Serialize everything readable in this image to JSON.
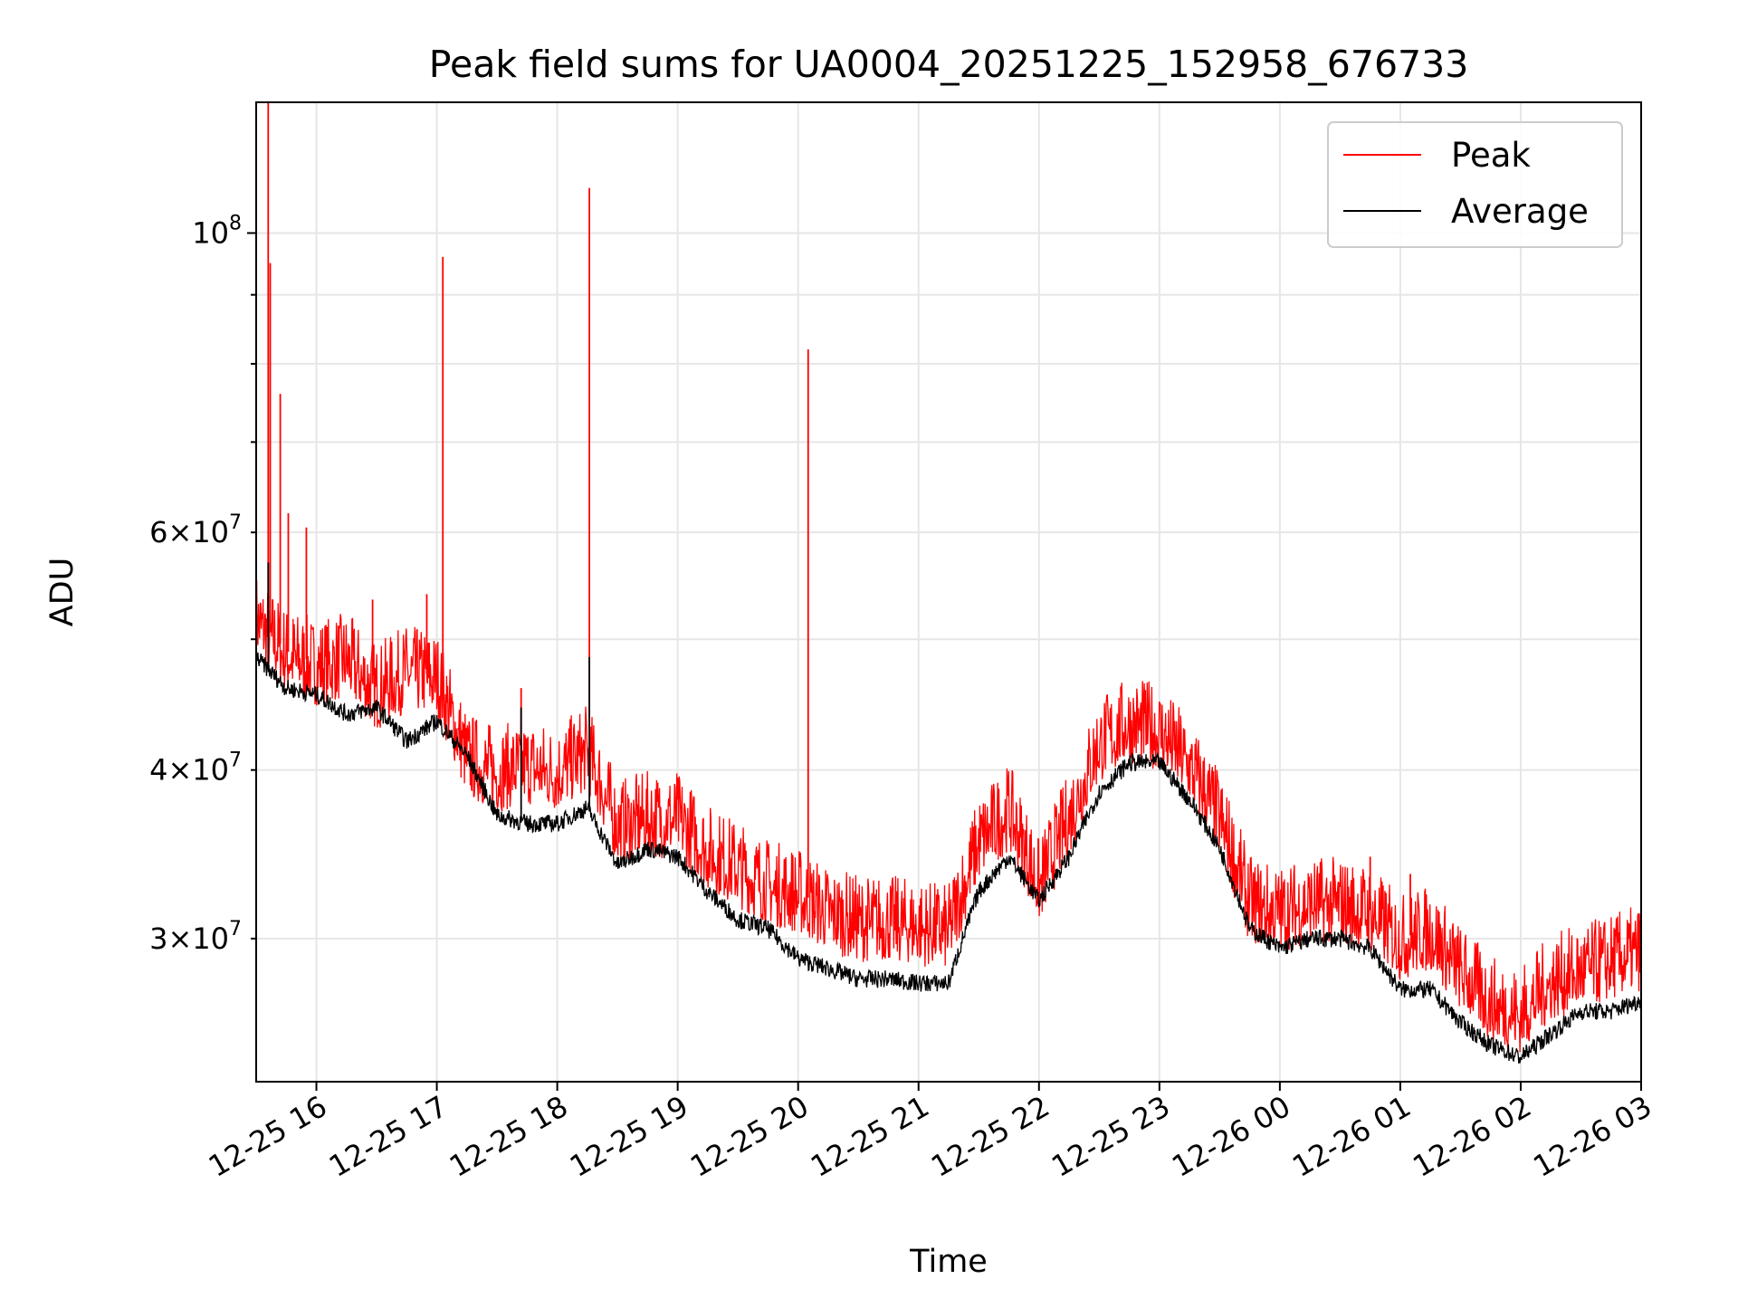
{
  "chart_data": {
    "type": "line",
    "title": "Peak field sums for UA0004_20251225_152958_676733",
    "xlabel": "Time",
    "ylabel": "ADU",
    "y_scale": "log",
    "ylim": [
      23500000,
      125000000
    ],
    "xlim": [
      "2025-12-25 15:30",
      "2025-12-26 03:00"
    ],
    "grid": true,
    "legend_position": "top-right",
    "x_tick_labels": [
      "12-25 16",
      "12-25 17",
      "12-25 18",
      "12-25 19",
      "12-25 20",
      "12-25 21",
      "12-25 22",
      "12-25 23",
      "12-26 00",
      "12-26 01",
      "12-26 02",
      "12-26 03"
    ],
    "x_ticks": [
      "2025-12-25 16:00",
      "2025-12-25 17:00",
      "2025-12-25 18:00",
      "2025-12-25 19:00",
      "2025-12-25 20:00",
      "2025-12-25 21:00",
      "2025-12-25 22:00",
      "2025-12-25 23:00",
      "2025-12-26 00:00",
      "2025-12-26 01:00",
      "2025-12-26 02:00",
      "2025-12-26 03:00"
    ],
    "y_major_ticks": [
      {
        "value": 100000000,
        "base": "10",
        "exp": "8"
      }
    ],
    "y_minor_ticks": [
      {
        "value": 30000000,
        "mant": "3",
        "base": "10",
        "exp": "7"
      },
      {
        "value": 40000000,
        "mant": "4",
        "base": "10",
        "exp": "7"
      },
      {
        "value": 60000000,
        "mant": "6",
        "base": "10",
        "exp": "7"
      }
    ],
    "y_minor_unlabeled": [
      50000000,
      70000000,
      80000000,
      90000000
    ],
    "series": [
      {
        "name": "Peak",
        "color": "#ff0000",
        "x": [
          "2025-12-25 15:30",
          "2025-12-25 15:45",
          "2025-12-25 16:00",
          "2025-12-25 16:15",
          "2025-12-25 16:30",
          "2025-12-25 16:45",
          "2025-12-25 17:00",
          "2025-12-25 17:15",
          "2025-12-25 17:30",
          "2025-12-25 17:45",
          "2025-12-25 18:00",
          "2025-12-25 18:15",
          "2025-12-25 18:30",
          "2025-12-25 18:45",
          "2025-12-25 19:00",
          "2025-12-25 19:15",
          "2025-12-25 19:30",
          "2025-12-25 19:45",
          "2025-12-25 20:00",
          "2025-12-25 20:15",
          "2025-12-25 20:30",
          "2025-12-25 20:45",
          "2025-12-25 21:00",
          "2025-12-25 21:15",
          "2025-12-25 21:30",
          "2025-12-25 21:45",
          "2025-12-25 22:00",
          "2025-12-25 22:15",
          "2025-12-25 22:30",
          "2025-12-25 22:45",
          "2025-12-25 23:00",
          "2025-12-25 23:15",
          "2025-12-25 23:30",
          "2025-12-25 23:45",
          "2025-12-26 00:00",
          "2025-12-26 00:15",
          "2025-12-26 00:30",
          "2025-12-26 00:45",
          "2025-12-26 01:00",
          "2025-12-26 01:15",
          "2025-12-26 01:30",
          "2025-12-26 01:45",
          "2025-12-26 02:00",
          "2025-12-26 02:15",
          "2025-12-26 02:30",
          "2025-12-26 02:45",
          "2025-12-26 03:00"
        ],
        "y": [
          52000000,
          49000000,
          48000000,
          48500000,
          46000000,
          47500000,
          47000000,
          41000000,
          40000000,
          40500000,
          40000000,
          41500000,
          36500000,
          37000000,
          37000000,
          35000000,
          34000000,
          33000000,
          32500000,
          31500000,
          31000000,
          31000000,
          30800000,
          30500000,
          35500000,
          37500000,
          33000000,
          37000000,
          42000000,
          43500000,
          43000000,
          40500000,
          37000000,
          32000000,
          31500000,
          32000000,
          32000000,
          31500000,
          30000000,
          30500000,
          28500000,
          27000000,
          26500000,
          28000000,
          28500000,
          29000000,
          29500000
        ],
        "spikes": [
          {
            "x": "2025-12-25 15:36",
            "y": 125000000
          },
          {
            "x": "2025-12-25 15:37",
            "y": 95000000
          },
          {
            "x": "2025-12-25 15:42",
            "y": 76000000
          },
          {
            "x": "2025-12-25 15:46",
            "y": 62000000
          },
          {
            "x": "2025-12-25 15:55",
            "y": 60500000
          },
          {
            "x": "2025-12-25 16:28",
            "y": 53500000
          },
          {
            "x": "2025-12-25 16:55",
            "y": 54000000
          },
          {
            "x": "2025-12-25 17:03",
            "y": 96000000
          },
          {
            "x": "2025-12-25 17:42",
            "y": 46000000
          },
          {
            "x": "2025-12-25 18:16",
            "y": 108000000
          },
          {
            "x": "2025-12-25 20:05",
            "y": 82000000
          },
          {
            "x": "2025-12-26 00:45",
            "y": 34500000
          },
          {
            "x": "2025-12-26 01:05",
            "y": 33500000
          }
        ]
      },
      {
        "name": "Average",
        "color": "#000000",
        "x": [
          "2025-12-25 15:30",
          "2025-12-25 15:45",
          "2025-12-25 16:00",
          "2025-12-25 16:15",
          "2025-12-25 16:30",
          "2025-12-25 16:45",
          "2025-12-25 17:00",
          "2025-12-25 17:15",
          "2025-12-25 17:30",
          "2025-12-25 17:45",
          "2025-12-25 18:00",
          "2025-12-25 18:15",
          "2025-12-25 18:30",
          "2025-12-25 18:45",
          "2025-12-25 19:00",
          "2025-12-25 19:15",
          "2025-12-25 19:30",
          "2025-12-25 19:45",
          "2025-12-25 20:00",
          "2025-12-25 20:15",
          "2025-12-25 20:30",
          "2025-12-25 20:45",
          "2025-12-25 21:00",
          "2025-12-25 21:15",
          "2025-12-25 21:30",
          "2025-12-25 21:45",
          "2025-12-25 22:00",
          "2025-12-25 22:15",
          "2025-12-25 22:30",
          "2025-12-25 22:45",
          "2025-12-25 23:00",
          "2025-12-25 23:15",
          "2025-12-25 23:30",
          "2025-12-25 23:45",
          "2025-12-26 00:00",
          "2025-12-26 00:15",
          "2025-12-26 00:30",
          "2025-12-26 00:45",
          "2025-12-26 01:00",
          "2025-12-26 01:15",
          "2025-12-26 01:30",
          "2025-12-26 01:45",
          "2025-12-26 02:00",
          "2025-12-26 02:15",
          "2025-12-26 02:30",
          "2025-12-26 02:45",
          "2025-12-26 03:00"
        ],
        "y": [
          48500000,
          46000000,
          45500000,
          44000000,
          44500000,
          42000000,
          43500000,
          41000000,
          37000000,
          36500000,
          36500000,
          37500000,
          34000000,
          35000000,
          34500000,
          32500000,
          31000000,
          30500000,
          29000000,
          28500000,
          28000000,
          28000000,
          27800000,
          27800000,
          32500000,
          34500000,
          32000000,
          34500000,
          38500000,
          40500000,
          40500000,
          38000000,
          35000000,
          30500000,
          29500000,
          30000000,
          30000000,
          29500000,
          27500000,
          27500000,
          26000000,
          25000000,
          24500000,
          25500000,
          26500000,
          26500000,
          27000000
        ],
        "spikes": [
          {
            "x": "2025-12-25 15:36",
            "y": 57000000
          },
          {
            "x": "2025-12-25 17:42",
            "y": 44500000
          },
          {
            "x": "2025-12-25 18:16",
            "y": 48500000
          }
        ]
      }
    ]
  }
}
